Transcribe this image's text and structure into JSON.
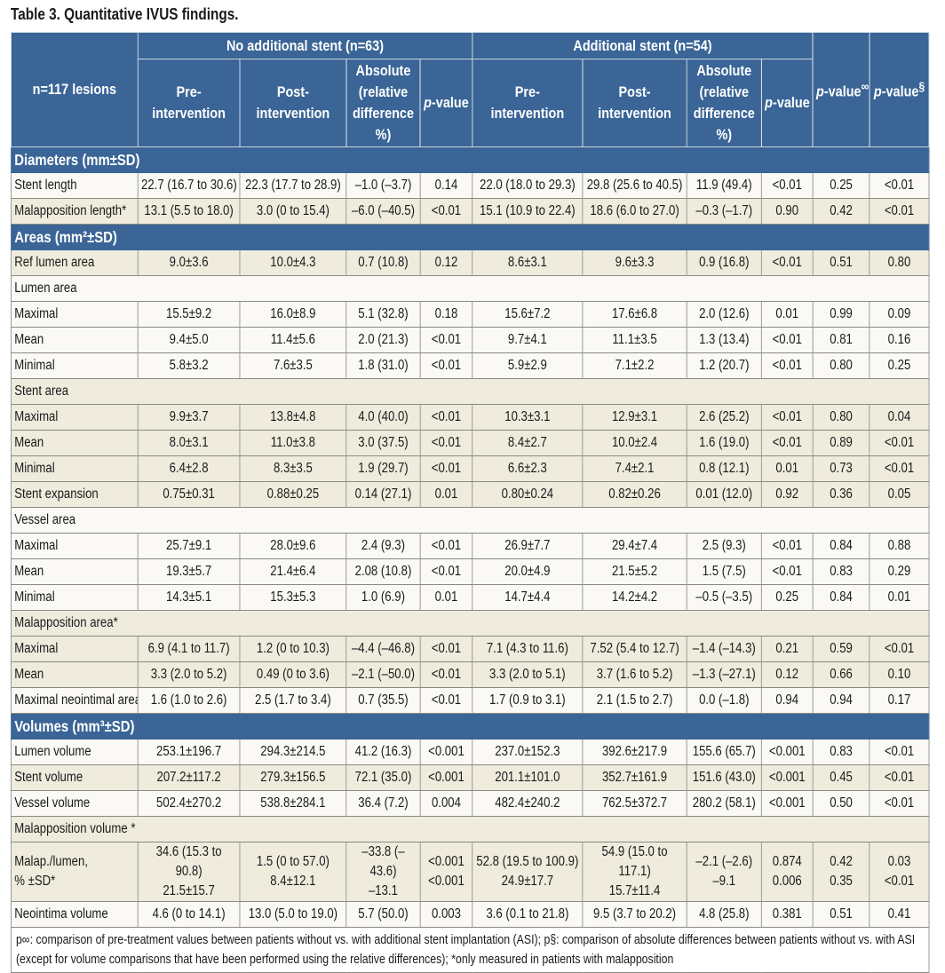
{
  "title": "Table 3. Quantitative IVUS findings.",
  "header": {
    "row_label": "n=117 lesions",
    "group1": "No additional stent (n=63)",
    "group2": "Additional stent (n=54)",
    "pre": "Pre-\nintervention",
    "post": "Post-\nintervention",
    "abs": "Absolute\n(relative\ndifference\n%)",
    "p": "p",
    "value": "-value",
    "p_inf_sup": "∞",
    "p_sec_sup": "§"
  },
  "colors": {
    "header_bg": "#3a6596",
    "beige": "#efebdd",
    "light": "#faf9f5"
  },
  "rows": [
    {
      "type": "section",
      "label": "Diameters (mm±SD)"
    },
    {
      "type": "data",
      "shade": "light",
      "label": "Stent length",
      "cells": [
        "22.7 (16.7 to 30.6)",
        "22.3 (17.7 to 28.9)",
        "–1.0 (–3.7)",
        "0.14",
        "22.0 (18.0 to 29.3)",
        "29.8 (25.6 to 40.5)",
        "11.9 (49.4)",
        "<0.01",
        "0.25",
        "<0.01"
      ]
    },
    {
      "type": "data",
      "shade": "beige",
      "label": "Malapposition length*",
      "cells": [
        "13.1 (5.5 to 18.0)",
        "3.0 (0 to 15.4)",
        "–6.0 (–40.5)",
        "<0.01",
        "15.1 (10.9 to 22.4)",
        "18.6 (6.0 to 27.0)",
        "–0.3 (–1.7)",
        "0.90",
        "0.42",
        "<0.01"
      ]
    },
    {
      "type": "section",
      "label": "Areas (mm²±SD)"
    },
    {
      "type": "data",
      "shade": "beige",
      "label": "Ref lumen area",
      "cells": [
        "9.0±3.6",
        "10.0±4.3",
        "0.7 (10.8)",
        "0.12",
        "8.6±3.1",
        "9.6±3.3",
        "0.9 (16.8)",
        "<0.01",
        "0.51",
        "0.80"
      ]
    },
    {
      "type": "group",
      "shade": "light",
      "label": "Lumen area"
    },
    {
      "type": "data",
      "shade": "light",
      "label": "Maximal",
      "cells": [
        "15.5±9.2",
        "16.0±8.9",
        "5.1 (32.8)",
        "0.18",
        "15.6±7.2",
        "17.6±6.8",
        "2.0 (12.6)",
        "0.01",
        "0.99",
        "0.09"
      ]
    },
    {
      "type": "data",
      "shade": "light",
      "label": "Mean",
      "cells": [
        "9.4±5.0",
        "11.4±5.6",
        "2.0 (21.3)",
        "<0.01",
        "9.7±4.1",
        "11.1±3.5",
        "1.3 (13.4)",
        "<0.01",
        "0.81",
        "0.16"
      ]
    },
    {
      "type": "data",
      "shade": "light",
      "label": "Minimal",
      "cells": [
        "5.8±3.2",
        "7.6±3.5",
        "1.8 (31.0)",
        "<0.01",
        "5.9±2.9",
        "7.1±2.2",
        "1.2 (20.7)",
        "<0.01",
        "0.80",
        "0.25"
      ]
    },
    {
      "type": "group",
      "shade": "beige",
      "label": "Stent area"
    },
    {
      "type": "data",
      "shade": "beige",
      "label": "Maximal",
      "cells": [
        "9.9±3.7",
        "13.8±4.8",
        "4.0 (40.0)",
        "<0.01",
        "10.3±3.1",
        "12.9±3.1",
        "2.6 (25.2)",
        "<0.01",
        "0.80",
        "0.04"
      ]
    },
    {
      "type": "data",
      "shade": "beige",
      "label": "Mean",
      "cells": [
        "8.0±3.1",
        "11.0±3.8",
        "3.0 (37.5)",
        "<0.01",
        "8.4±2.7",
        "10.0±2.4",
        "1.6 (19.0)",
        "<0.01",
        "0.89",
        "<0.01"
      ]
    },
    {
      "type": "data",
      "shade": "beige",
      "label": "Minimal",
      "cells": [
        "6.4±2.8",
        "8.3±3.5",
        "1.9 (29.7)",
        "<0.01",
        "6.6±2.3",
        "7.4±2.1",
        "0.8 (12.1)",
        "0.01",
        "0.73",
        "<0.01"
      ]
    },
    {
      "type": "data",
      "shade": "beige",
      "label": "Stent expansion",
      "cells": [
        "0.75±0.31",
        "0.88±0.25",
        "0.14 (27.1)",
        "0.01",
        "0.80±0.24",
        "0.82±0.26",
        "0.01 (12.0)",
        "0.92",
        "0.36",
        "0.05"
      ]
    },
    {
      "type": "group",
      "shade": "light",
      "label": "Vessel area"
    },
    {
      "type": "data",
      "shade": "light",
      "label": "Maximal",
      "cells": [
        "25.7±9.1",
        "28.0±9.6",
        "2.4 (9.3)",
        "<0.01",
        "26.9±7.7",
        "29.4±7.4",
        "2.5 (9.3)",
        "<0.01",
        "0.84",
        "0.88"
      ]
    },
    {
      "type": "data",
      "shade": "light",
      "label": "Mean",
      "cells": [
        "19.3±5.7",
        "21.4±6.4",
        "2.08 (10.8)",
        "<0.01",
        "20.0±4.9",
        "21.5±5.2",
        "1.5 (7.5)",
        "<0.01",
        "0.83",
        "0.29"
      ]
    },
    {
      "type": "data",
      "shade": "light",
      "label": "Minimal",
      "cells": [
        "14.3±5.1",
        "15.3±5.3",
        "1.0 (6.9)",
        "0.01",
        "14.7±4.4",
        "14.2±4.2",
        "–0.5 (–3.5)",
        "0.25",
        "0.84",
        "0.01"
      ]
    },
    {
      "type": "group",
      "shade": "beige",
      "label": "Malapposition area*"
    },
    {
      "type": "data",
      "shade": "beige",
      "label": "Maximal",
      "cells": [
        "6.9 (4.1 to 11.7)",
        "1.2 (0 to 10.3)",
        "–4.4 (–46.8)",
        "<0.01",
        "7.1 (4.3 to 11.6)",
        "7.52 (5.4 to 12.7)",
        "–1.4 (–14.3)",
        "0.21",
        "0.59",
        "<0.01"
      ]
    },
    {
      "type": "data",
      "shade": "beige",
      "label": "Mean",
      "cells": [
        "3.3 (2.0 to 5.2)",
        "0.49 (0 to 3.6)",
        "–2.1 (–50.0)",
        "<0.01",
        "3.3 (2.0 to 5.1)",
        "3.7 (1.6 to 5.2)",
        "–1.3 (–27.1)",
        "0.12",
        "0.66",
        "0.10"
      ]
    },
    {
      "type": "data",
      "shade": "light",
      "label": "Maximal neointimal area",
      "cells": [
        "1.6 (1.0 to 2.6)",
        "2.5 (1.7 to 3.4)",
        "0.7 (35.5)",
        "<0.01",
        "1.7 (0.9 to 3.1)",
        "2.1 (1.5 to 2.7)",
        "0.0 (–1.8)",
        "0.94",
        "0.94",
        "0.17"
      ]
    },
    {
      "type": "section",
      "label": "Volumes (mm³±SD)"
    },
    {
      "type": "data",
      "shade": "light",
      "label": "Lumen volume",
      "cells": [
        "253.1±196.7",
        "294.3±214.5",
        "41.2 (16.3)",
        "<0.001",
        "237.0±152.3",
        "392.6±217.9",
        "155.6 (65.7)",
        "<0.001",
        "0.83",
        "<0.01"
      ]
    },
    {
      "type": "data",
      "shade": "beige",
      "label": "Stent volume",
      "cells": [
        "207.2±117.2",
        "279.3±156.5",
        "72.1 (35.0)",
        "<0.001",
        "201.1±101.0",
        "352.7±161.9",
        "151.6 (43.0)",
        "<0.001",
        "0.45",
        "<0.01"
      ]
    },
    {
      "type": "data",
      "shade": "light",
      "label": "Vessel volume",
      "cells": [
        "502.4±270.2",
        "538.8±284.1",
        "36.4 (7.2)",
        "0.004",
        "482.4±240.2",
        "762.5±372.7",
        "280.2 (58.1)",
        "<0.001",
        "0.50",
        "<0.01"
      ]
    },
    {
      "type": "group",
      "shade": "beige",
      "label": "Malapposition volume *"
    },
    {
      "type": "double",
      "shade": "beige",
      "label": "Malap./lumen,\n% ±SD*",
      "cells": [
        "34.6 (15.3 to 90.8)\n21.5±15.7",
        "1.5 (0 to 57.0)\n8.4±12.1",
        "–33.8 (–43.6)\n–13.1",
        "<0.001\n<0.001",
        "52.8 (19.5 to 100.9)\n24.9±17.7",
        "54.9 (15.0 to 117.1)\n15.7±11.4",
        "–2.1 (–2.6)\n–9.1",
        "0.874\n0.006",
        "0.42\n0.35",
        "0.03\n<0.01"
      ]
    },
    {
      "type": "data",
      "shade": "light",
      "label": "Neointima volume",
      "cells": [
        "4.6 (0 to 14.1)",
        "13.0 (5.0 to 19.0)",
        "5.7 (50.0)",
        "0.003",
        "3.6 (0.1 to 21.8)",
        "9.5 (3.7 to 20.2)",
        "4.8 (25.8)",
        "0.381",
        "0.51",
        "0.41"
      ]
    }
  ],
  "footnote": "p∞: comparison of pre-treatment values between patients without vs. with additional stent implantation (ASI); p§: comparison of absolute differences between patients without vs. with ASI (except for volume comparisons that have been performed using the relative differences); *only measured in patients with malapposition"
}
